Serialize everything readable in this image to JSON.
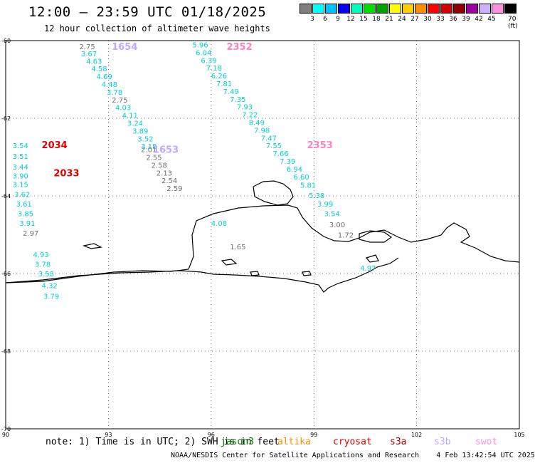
{
  "title": "12:00 – 23:59 UTC 01/18/2025",
  "subtitle": "12 hour collection of altimeter wave heights",
  "legend": {
    "units": "70 (ft)",
    "colors": [
      "#7f7f7f",
      "#00ffff",
      "#00bfff",
      "#0000ff",
      "#00ffbf",
      "#00df00",
      "#00a000",
      "#ffff00",
      "#ffcf00",
      "#ff8f00",
      "#ff0000",
      "#cf0000",
      "#8f0000",
      "#9f009f",
      "#cfafff",
      "#ff90df",
      "#000000"
    ],
    "labels": [
      "3",
      "6",
      "9",
      "12",
      "15",
      "18",
      "21",
      "24",
      "27",
      "30",
      "33",
      "36",
      "39",
      "42",
      "45"
    ]
  },
  "chart_data": {
    "type": "scatter",
    "xlim": [
      90,
      105
    ],
    "ylim": [
      -70,
      -60
    ],
    "x_ticks": [
      "90",
      "93",
      "96",
      "99",
      "102",
      "105"
    ],
    "y_ticks": [
      "-60",
      "-62",
      "-64",
      "-66",
      "-68",
      "-70"
    ],
    "tracks": [
      {
        "label": "1654",
        "label_color": "#c0a8ff",
        "label_lon": 93.1,
        "label_lat": -60.15,
        "points": [
          [
            92.15,
            -60.15,
            "2.75",
            "#707070"
          ],
          [
            92.2,
            -60.33,
            "3.67",
            "#00d0d0"
          ],
          [
            92.35,
            -60.52,
            "4.63",
            "#00d0d0"
          ],
          [
            92.5,
            -60.72,
            "4.58",
            "#00d0d0"
          ],
          [
            92.65,
            -60.92,
            "4.69",
            "#00d0d0"
          ],
          [
            92.8,
            -61.12,
            "4.48",
            "#00d0d0"
          ],
          [
            92.95,
            -61.32,
            "3.78",
            "#00d0d0"
          ],
          [
            93.1,
            -61.52,
            "2.75",
            "#707070"
          ],
          [
            93.2,
            -61.72,
            "4.03",
            "#00d0d0"
          ],
          [
            93.4,
            -61.92,
            "4.11",
            "#00d0d0"
          ],
          [
            93.55,
            -62.12,
            "3.24",
            "#00d0d0"
          ],
          [
            93.7,
            -62.32,
            "3.89",
            "#00d0d0"
          ],
          [
            93.85,
            -62.52,
            "3.52",
            "#00d0d0"
          ],
          [
            93.95,
            -62.72,
            "3.18",
            "#00d0d0"
          ]
        ]
      },
      {
        "label": "1653",
        "label_color": "#c0a8ff",
        "label_lon": 94.3,
        "label_lat": -62.8,
        "points": [
          [
            93.95,
            -62.8,
            "2.01",
            "#707070"
          ],
          [
            94.1,
            -63.0,
            "2.55",
            "#707070"
          ],
          [
            94.25,
            -63.2,
            "2.58",
            "#707070"
          ],
          [
            94.4,
            -63.4,
            "2.13",
            "#707070"
          ],
          [
            94.55,
            -63.6,
            "2.54",
            "#707070"
          ],
          [
            94.7,
            -63.8,
            "2.59",
            "#707070"
          ]
        ]
      },
      {
        "label": "2352",
        "label_color": "#ff80c0",
        "label_lon": 96.45,
        "label_lat": -60.15,
        "points": [
          [
            95.45,
            -60.1,
            "5.96",
            "#00d0d0"
          ],
          [
            95.55,
            -60.3,
            "6.04",
            "#00d0d0"
          ],
          [
            95.7,
            -60.5,
            "6.39",
            "#00d0d0"
          ],
          [
            95.85,
            -60.7,
            "7.18",
            "#00d0d0"
          ],
          [
            96.0,
            -60.9,
            "6.26",
            "#00d0d0"
          ],
          [
            96.15,
            -61.1,
            "7.81",
            "#00d0d0"
          ],
          [
            96.35,
            -61.3,
            "7.49",
            "#00d0d0"
          ],
          [
            96.55,
            -61.5,
            "7.35",
            "#00d0d0"
          ],
          [
            96.75,
            -61.7,
            "7.93",
            "#00d0d0"
          ],
          [
            96.9,
            -61.9,
            "7.22",
            "#00d0d0"
          ],
          [
            97.1,
            -62.1,
            "8.49",
            "#00d0d0"
          ],
          [
            97.25,
            -62.3,
            "7.98",
            "#00d0d0"
          ],
          [
            97.45,
            -62.5,
            "7.47",
            "#00d0d0"
          ],
          [
            97.6,
            -62.7,
            "7.55",
            "#00d0d0"
          ],
          [
            97.8,
            -62.9,
            "7.66",
            "#00d0d0"
          ],
          [
            98.0,
            -63.1,
            "7.39",
            "#00d0d0"
          ],
          [
            98.2,
            -63.3,
            "6.94",
            "#00d0d0"
          ],
          [
            98.4,
            -63.5,
            "6.60",
            "#00d0d0"
          ],
          [
            98.6,
            -63.72,
            "5.81",
            "#00d0d0"
          ],
          [
            98.85,
            -63.98,
            "5.38",
            "#00d0d0"
          ],
          [
            99.1,
            -64.2,
            "3.99",
            "#00d0d0"
          ],
          [
            99.3,
            -64.45,
            "3.54",
            "#00d0d0"
          ],
          [
            99.45,
            -64.73,
            "3.00",
            "#707070"
          ],
          [
            99.7,
            -65.0,
            "1.72",
            "#707070"
          ],
          [
            100.35,
            -65.85,
            "4.97",
            "#00d0d0"
          ]
        ]
      },
      {
        "label": "2353",
        "label_color": "#ff80c0",
        "label_lon": 98.8,
        "label_lat": -62.68,
        "points": []
      },
      {
        "label": "2034",
        "label_color": "#e00000",
        "label_lon": 91.05,
        "label_lat": -62.68,
        "points": [
          [
            90.2,
            -62.7,
            "3.54",
            "#00d0d0"
          ],
          [
            90.2,
            -62.97,
            "3.51",
            "#00d0d0"
          ],
          [
            90.2,
            -63.25,
            "3.44",
            "#00d0d0"
          ],
          [
            90.2,
            -63.48,
            "3.90",
            "#00d0d0"
          ],
          [
            90.2,
            -63.7,
            "3.15",
            "#00d0d0"
          ],
          [
            90.25,
            -63.95,
            "3.62",
            "#00d0d0"
          ],
          [
            90.3,
            -64.2,
            "3.61",
            "#00d0d0"
          ],
          [
            90.35,
            -64.45,
            "3.85",
            "#00d0d0"
          ],
          [
            90.4,
            -64.7,
            "3.91",
            "#00d0d0"
          ],
          [
            90.5,
            -64.95,
            "2.97",
            "#707070"
          ],
          [
            90.8,
            -65.5,
            "4.93",
            "#00d0d0"
          ],
          [
            90.85,
            -65.75,
            "3.78",
            "#00d0d0"
          ],
          [
            90.95,
            -66.0,
            "3.58",
            "#00d0d0"
          ],
          [
            91.05,
            -66.3,
            "4.32",
            "#00d0d0"
          ],
          [
            91.1,
            -66.58,
            "3.79",
            "#00d0d0"
          ]
        ]
      },
      {
        "label": "2033",
        "label_color": "#e00000",
        "label_lon": 91.4,
        "label_lat": -63.4,
        "points": []
      },
      {
        "label": "",
        "label_color": "",
        "label_lon": 0,
        "label_lat": 0,
        "points": [
          [
            96.0,
            -64.7,
            "4.08",
            "#00d0d0"
          ],
          [
            96.55,
            -65.3,
            "1.65",
            "#707070"
          ]
        ]
      }
    ]
  },
  "footer": {
    "note": "note: 1) Time is in UTC; 2) SWH is in feet",
    "satellites": [
      {
        "name": "jason3",
        "color": "#008000"
      },
      {
        "name": "altika",
        "color": "#ff9000"
      },
      {
        "name": "cryosat",
        "color": "#e00000"
      },
      {
        "name": "s3a",
        "color": "#a00000"
      },
      {
        "name": "s3b",
        "color": "#c0a8ff"
      },
      {
        "name": "swot",
        "color": "#ff90df"
      }
    ],
    "credit": "NOAA/NESDIS Center for Satellite Applications and Research",
    "timestamp": "4 Feb 13:42:54 UTC 2025"
  }
}
